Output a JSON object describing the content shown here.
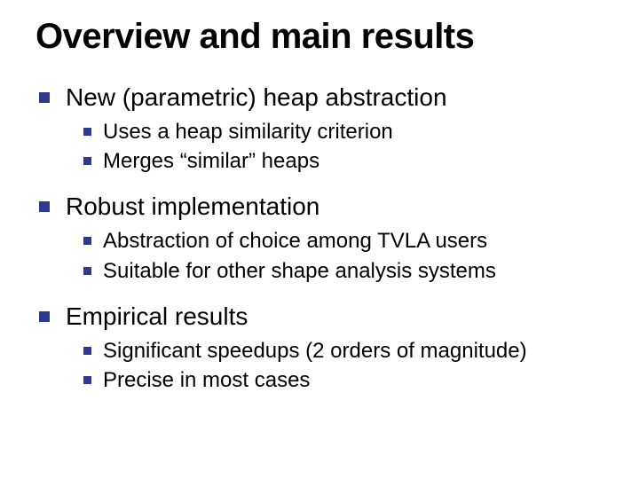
{
  "colors": {
    "bullet": "#2e3a8c",
    "text": "#000000",
    "background": "#ffffff"
  },
  "typography": {
    "family": "Verdana",
    "title_size_pt": 40,
    "title_weight": 700,
    "level1_size_pt": 28,
    "level2_size_pt": 24
  },
  "slide": {
    "title": "Overview and main results",
    "bullets": [
      {
        "text": "New (parametric) heap abstraction",
        "sub": [
          "Uses a heap similarity criterion",
          "Merges “similar” heaps"
        ]
      },
      {
        "text": "Robust implementation",
        "sub": [
          "Abstraction of choice among TVLA users",
          "Suitable for other shape analysis systems"
        ]
      },
      {
        "text": "Empirical results",
        "sub": [
          "Significant speedups (2 orders of magnitude)",
          "Precise in most cases"
        ]
      }
    ]
  }
}
